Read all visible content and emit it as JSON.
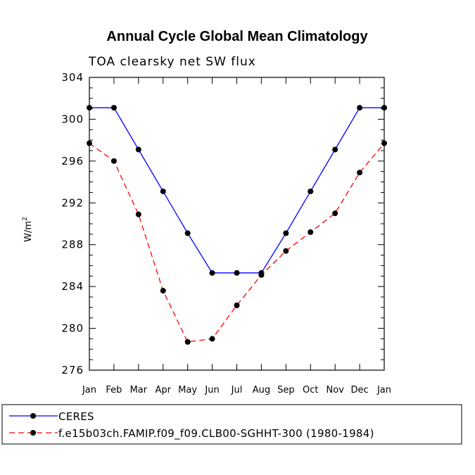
{
  "chart_data": {
    "type": "line",
    "title": "Annual Cycle Global Mean Climatology",
    "subtitle": "TOA clearsky net SW flux",
    "ylabel": "W/m",
    "ylabel_sup": "2",
    "categories": [
      "Jan",
      "Feb",
      "Mar",
      "Apr",
      "May",
      "Jun",
      "Jul",
      "Aug",
      "Sep",
      "Oct",
      "Nov",
      "Dec",
      "Jan"
    ],
    "ylim": [
      276,
      304
    ],
    "yticks": [
      276,
      280,
      284,
      288,
      292,
      296,
      300,
      304
    ],
    "grid": false,
    "legend_position": "bottom",
    "series": [
      {
        "name": "CERES",
        "color": "#0000ff",
        "dash": "solid",
        "values": [
          301.1,
          301.1,
          297.1,
          293.1,
          289.1,
          285.3,
          285.3,
          285.3,
          289.1,
          293.1,
          297.1,
          301.1,
          301.1
        ]
      },
      {
        "name": "f.e15b03ch.FAMIP.f09_f09.CLB00-SGHHT-300 (1980-1984)",
        "color": "#ff0000",
        "dash": "dashed",
        "values": [
          297.7,
          296.0,
          290.9,
          283.6,
          278.7,
          279.0,
          282.2,
          285.1,
          287.4,
          289.2,
          291.0,
          294.9,
          297.7
        ]
      }
    ]
  }
}
